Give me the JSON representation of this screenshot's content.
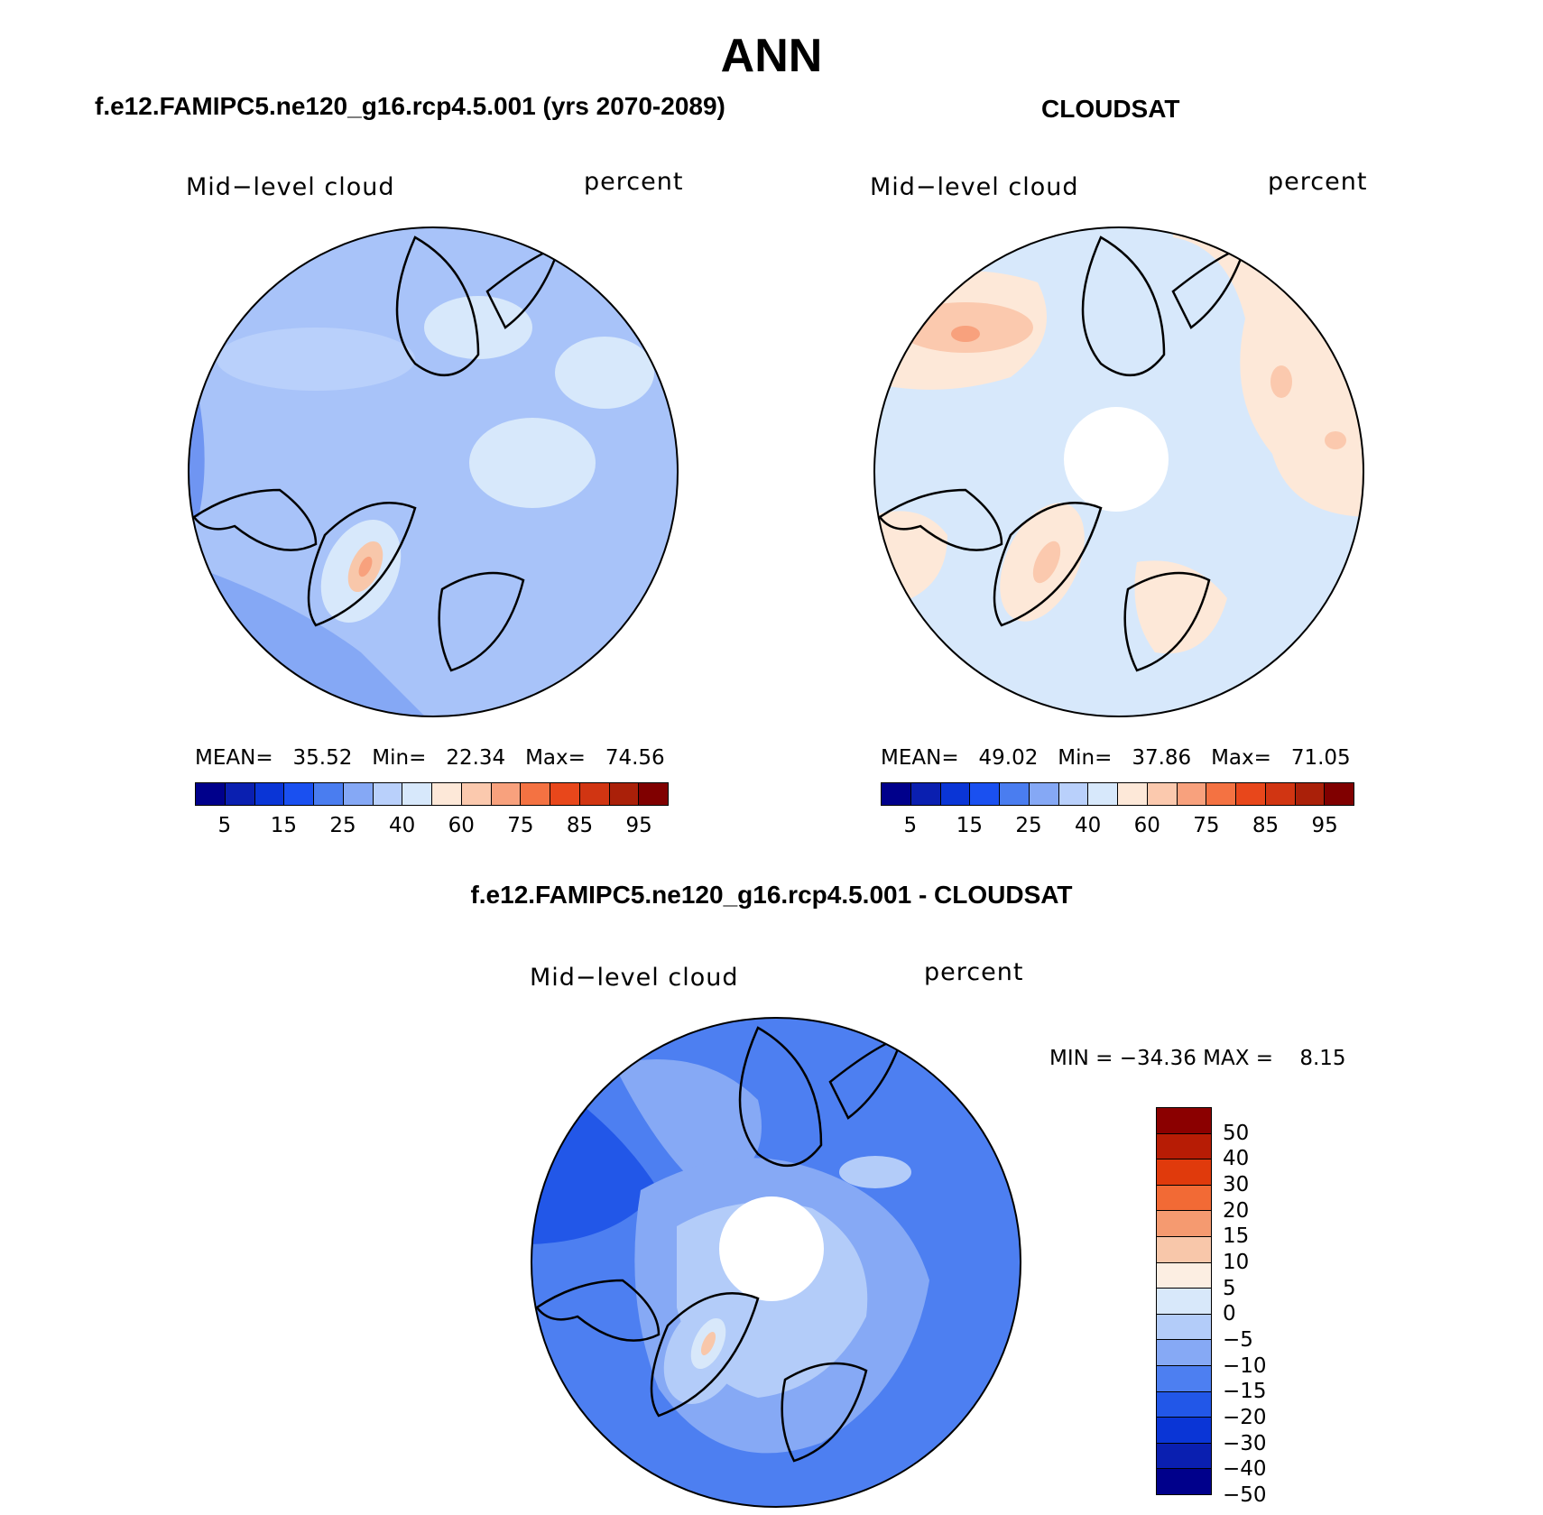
{
  "title": "ANN",
  "panels": [
    {
      "title": "f.e12.FAMIPC5.ne120_g16.rcp4.5.001 (yrs 2070-2089)",
      "variable": "Mid−level cloud",
      "units": "percent",
      "stats": "MEAN=   35.52   Min=   22.34   Max=   74.56"
    },
    {
      "title": "CLOUDSAT",
      "variable": "Mid−level cloud",
      "units": "percent",
      "stats": "MEAN=   49.02   Min=   37.86   Max=   71.05"
    },
    {
      "title": "f.e12.FAMIPC5.ne120_g16.rcp4.5.001 - CLOUDSAT",
      "variable": "Mid−level cloud",
      "units": "percent",
      "stats": "MIN = −34.36 MAX =    8.15"
    }
  ],
  "abs_colorbar": {
    "colors": [
      "#00008b",
      "#0a1fb0",
      "#0a35d6",
      "#1a50f0",
      "#4a7df0",
      "#85a8f5",
      "#b9d0fb",
      "#d7e8fb",
      "#fde8d8",
      "#fbc9ae",
      "#f8a17d",
      "#f47242",
      "#e8471b",
      "#d13512",
      "#aa2009",
      "#800000"
    ],
    "labels": [
      "5",
      "15",
      "25",
      "40",
      "60",
      "75",
      "85",
      "95"
    ]
  },
  "diff_colorbar": {
    "colors": [
      "#8b0000",
      "#b71c05",
      "#e03a0c",
      "#f26a35",
      "#f59a70",
      "#f8c7aa",
      "#fceee2",
      "#d8e8fa",
      "#b3ccf9",
      "#86a9f5",
      "#4d7ff1",
      "#2257e8",
      "#0a35d6",
      "#0a1fb0",
      "#00008b"
    ],
    "labels": [
      "50",
      "40",
      "30",
      "20",
      "15",
      "10",
      "5",
      "0",
      "−5",
      "−10",
      "−15",
      "−20",
      "−30",
      "−40",
      "−50"
    ]
  },
  "map_fills": {
    "model": [
      "#b9d0fb",
      "#a8c3f9",
      "#85a8f5",
      "#d7e8fb",
      "#f8c7aa"
    ],
    "obs": [
      "#d7e8fb",
      "#fde8d8",
      "#fbc9ae"
    ],
    "diff": [
      "#85a8f5",
      "#4a7df0",
      "#2257e8",
      "#b3ccf9",
      "#d8e8fa",
      "#f8c7aa"
    ]
  }
}
